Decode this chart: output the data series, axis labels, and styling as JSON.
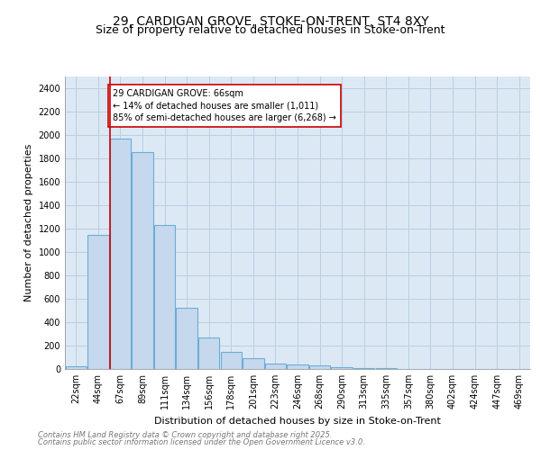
{
  "title_line1": "29, CARDIGAN GROVE, STOKE-ON-TRENT, ST4 8XY",
  "title_line2": "Size of property relative to detached houses in Stoke-on-Trent",
  "xlabel": "Distribution of detached houses by size in Stoke-on-Trent",
  "ylabel": "Number of detached properties",
  "categories": [
    "22sqm",
    "44sqm",
    "67sqm",
    "89sqm",
    "111sqm",
    "134sqm",
    "156sqm",
    "178sqm",
    "201sqm",
    "223sqm",
    "246sqm",
    "268sqm",
    "290sqm",
    "313sqm",
    "335sqm",
    "357sqm",
    "380sqm",
    "402sqm",
    "424sqm",
    "447sqm",
    "469sqm"
  ],
  "values": [
    25,
    1150,
    1970,
    1850,
    1230,
    520,
    270,
    150,
    90,
    45,
    35,
    30,
    15,
    8,
    5,
    3,
    2,
    2,
    1,
    1,
    0
  ],
  "bar_color": "#c5d8ee",
  "bar_edge_color": "#6baed6",
  "annotation_text": "29 CARDIGAN GROVE: 66sqm\n← 14% of detached houses are smaller (1,011)\n85% of semi-detached houses are larger (6,268) →",
  "annotation_box_color": "white",
  "annotation_box_edge_color": "#cc0000",
  "red_line_color": "#cc0000",
  "red_line_x": 1.55,
  "ylim": [
    0,
    2500
  ],
  "yticks": [
    0,
    200,
    400,
    600,
    800,
    1000,
    1200,
    1400,
    1600,
    1800,
    2000,
    2200,
    2400
  ],
  "grid_color": "#b8cfe0",
  "background_color": "#dce9f5",
  "footer_line1": "Contains HM Land Registry data © Crown copyright and database right 2025.",
  "footer_line2": "Contains public sector information licensed under the Open Government Licence v3.0.",
  "title_fontsize": 10,
  "subtitle_fontsize": 9,
  "tick_fontsize": 7,
  "ylabel_fontsize": 8,
  "xlabel_fontsize": 8,
  "footer_fontsize": 6,
  "annot_fontsize": 7
}
